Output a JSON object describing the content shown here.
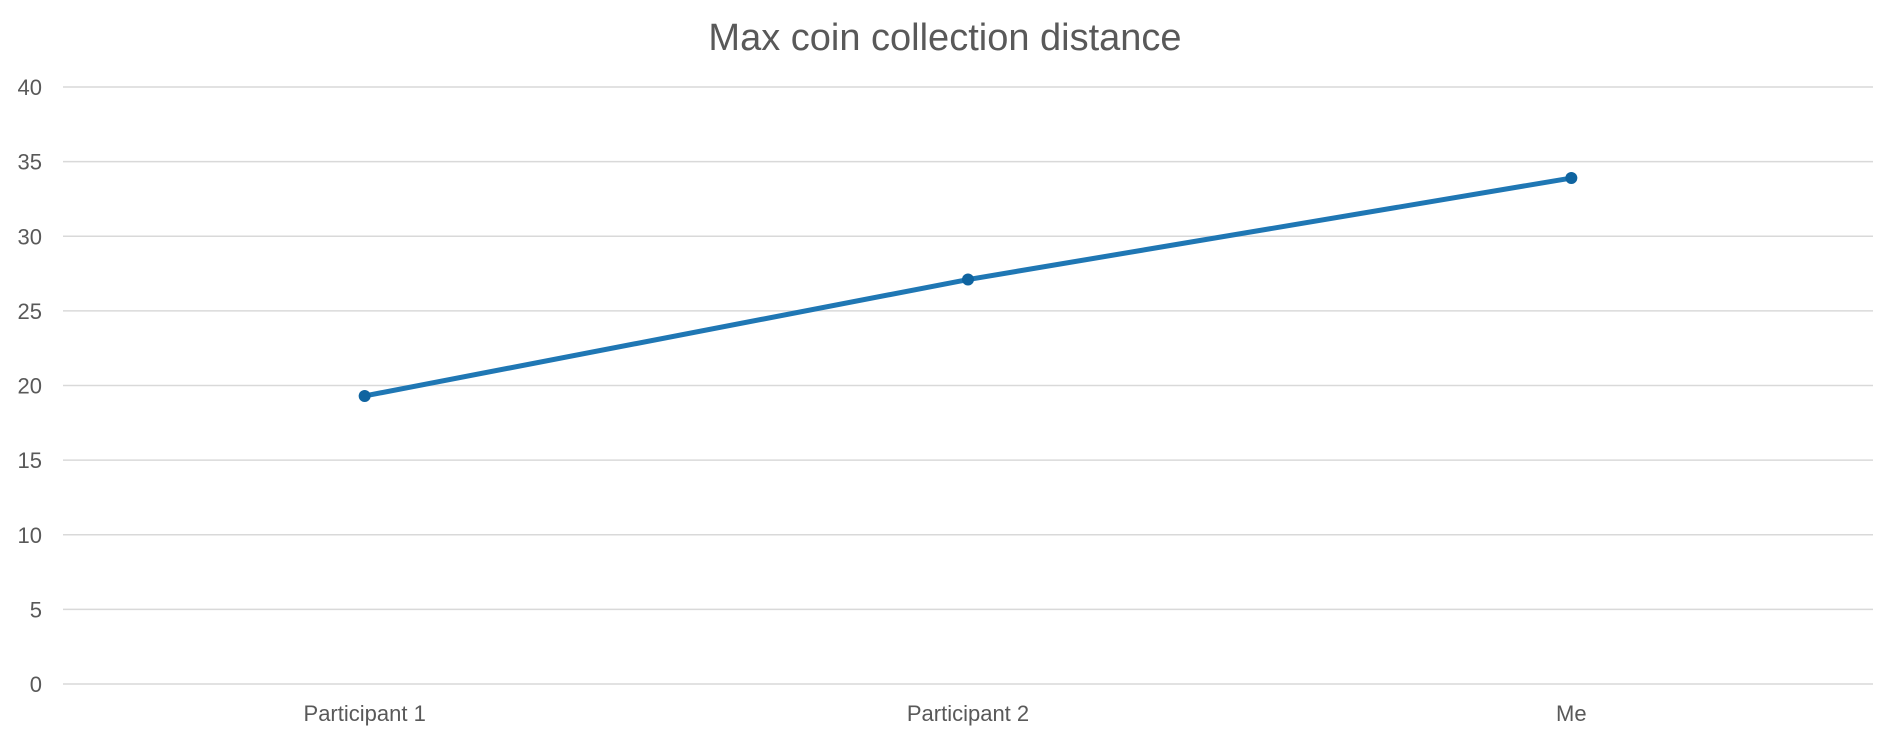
{
  "chart_data": {
    "type": "line",
    "title": "Max coin collection distance",
    "xlabel": "",
    "ylabel": "",
    "categories": [
      "Participant 1",
      "Participant 2",
      "Me"
    ],
    "series": [
      {
        "values": [
          19.3,
          27.1,
          33.9
        ],
        "color": "#1f77b4",
        "marker_color": "#0f64a0"
      }
    ],
    "ylim": [
      0,
      40
    ],
    "yticks": [
      0,
      5,
      10,
      15,
      20,
      25,
      30,
      35,
      40
    ],
    "grid": true,
    "legend": "none"
  }
}
